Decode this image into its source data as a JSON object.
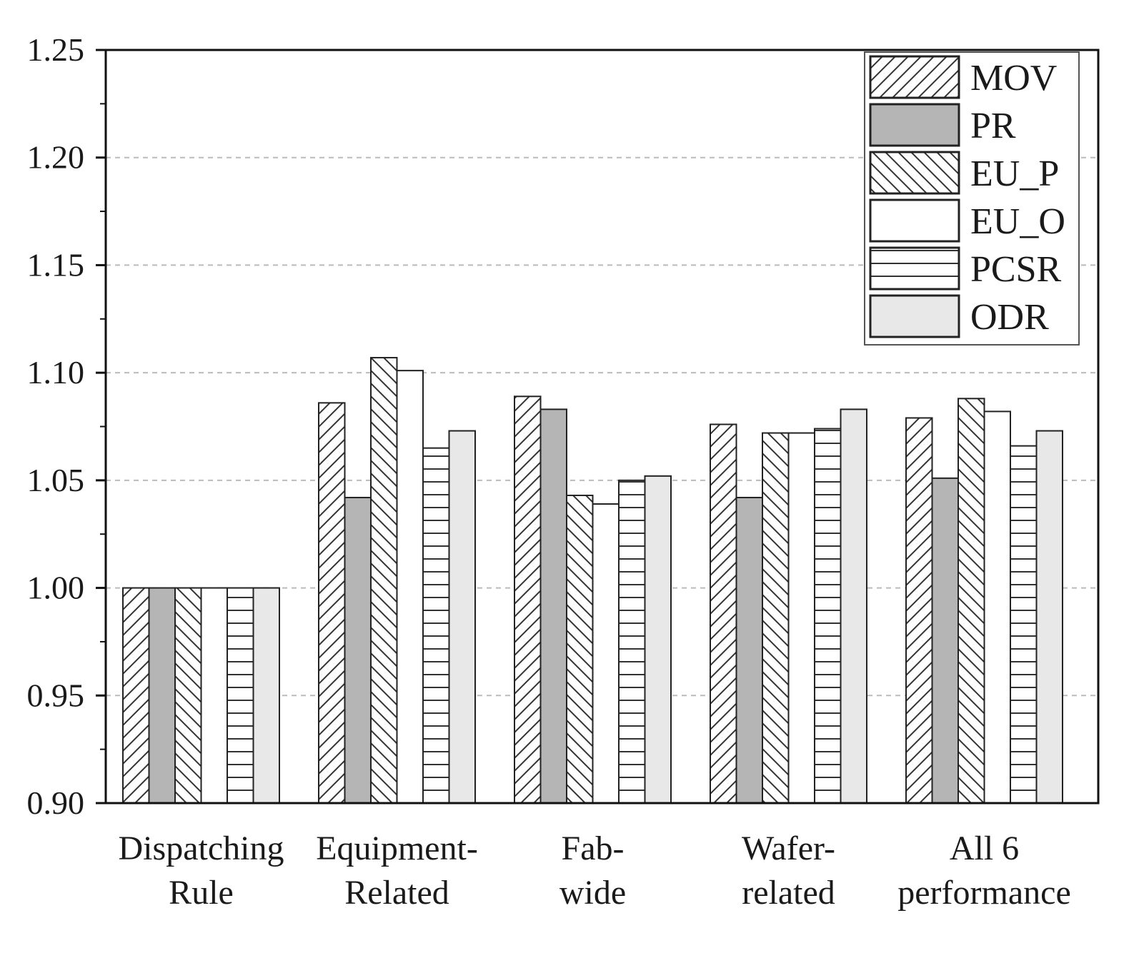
{
  "chart_data": {
    "type": "bar",
    "title": "",
    "xlabel": "",
    "ylabel": "",
    "ylim": [
      0.9,
      1.25
    ],
    "yticks": [
      "0.90",
      "0.95",
      "1.00",
      "1.05",
      "1.10",
      "1.15",
      "1.20",
      "1.25"
    ],
    "gridlines": "dashed-horizontal",
    "legend_position": "top-right",
    "categories": [
      [
        "Dispatching",
        "Rule"
      ],
      [
        "Equipment-",
        "Related"
      ],
      [
        "Fab-",
        "wide"
      ],
      [
        "Wafer-",
        "related"
      ],
      [
        "All 6",
        "performance"
      ]
    ],
    "series": [
      {
        "name": "MOV",
        "pattern": "diag-up",
        "fill": "#ffffff",
        "values": [
          1.0,
          1.086,
          1.089,
          1.076,
          1.079
        ]
      },
      {
        "name": "PR",
        "pattern": "solid",
        "fill": "#b5b5b5",
        "values": [
          1.0,
          1.042,
          1.083,
          1.042,
          1.051
        ]
      },
      {
        "name": "EU_P",
        "pattern": "diag-down",
        "fill": "#ffffff",
        "values": [
          1.0,
          1.107,
          1.043,
          1.072,
          1.088
        ]
      },
      {
        "name": "EU_O",
        "pattern": "solid",
        "fill": "#ffffff",
        "values": [
          1.0,
          1.101,
          1.039,
          1.072,
          1.082
        ]
      },
      {
        "name": "PCSR",
        "pattern": "horizontal",
        "fill": "#ffffff",
        "values": [
          1.0,
          1.065,
          1.05,
          1.074,
          1.066
        ]
      },
      {
        "name": "ODR",
        "pattern": "solid",
        "fill": "#e8e8e8",
        "values": [
          1.0,
          1.073,
          1.052,
          1.083,
          1.073
        ]
      }
    ]
  }
}
